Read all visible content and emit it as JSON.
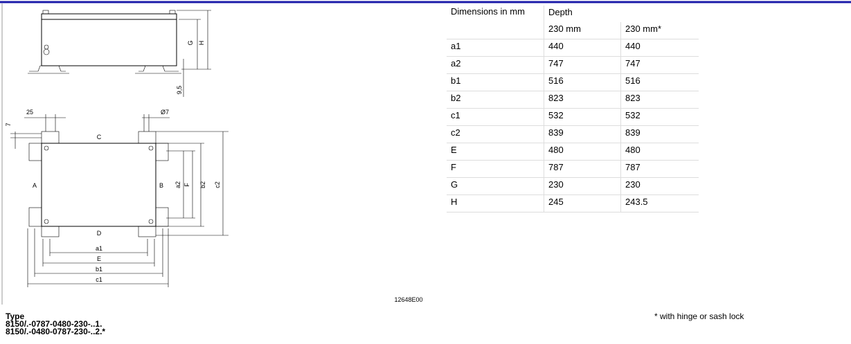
{
  "drawing": {
    "side_view": {
      "g": "G",
      "h": "H",
      "foot": "9,5"
    },
    "top_view": {
      "dim_25": "25",
      "dim_7": "7",
      "dim_hole": "Ø7",
      "side_c": "C",
      "side_a": "A",
      "side_b": "B",
      "side_d": "D",
      "a2": "a2",
      "f": "F",
      "b2": "b2",
      "c2": "c2",
      "a1": "a1",
      "e": "E",
      "b1": "b1",
      "c1": "c1"
    },
    "drawing_id": "12648E00"
  },
  "table": {
    "header": [
      "Dimensions in mm",
      "Depth"
    ],
    "subheader": [
      "230 mm",
      "230 mm*"
    ],
    "rows": [
      [
        "a1",
        "440",
        "440"
      ],
      [
        "a2",
        "747",
        "747"
      ],
      [
        "b1",
        "516",
        "516"
      ],
      [
        "b2",
        "823",
        "823"
      ],
      [
        "c1",
        "532",
        "532"
      ],
      [
        "c2",
        "839",
        "839"
      ],
      [
        "E",
        "480",
        "480"
      ],
      [
        "F",
        "787",
        "787"
      ],
      [
        "G",
        "230",
        "230"
      ],
      [
        "H",
        "245",
        "243.5"
      ]
    ]
  },
  "type_block": {
    "title": "Type",
    "lines": [
      "8150/.-0787-0480-230-..1.",
      "8150/.-0480-0787-230-..2.*"
    ]
  },
  "footnote": "* with hinge or sash lock"
}
